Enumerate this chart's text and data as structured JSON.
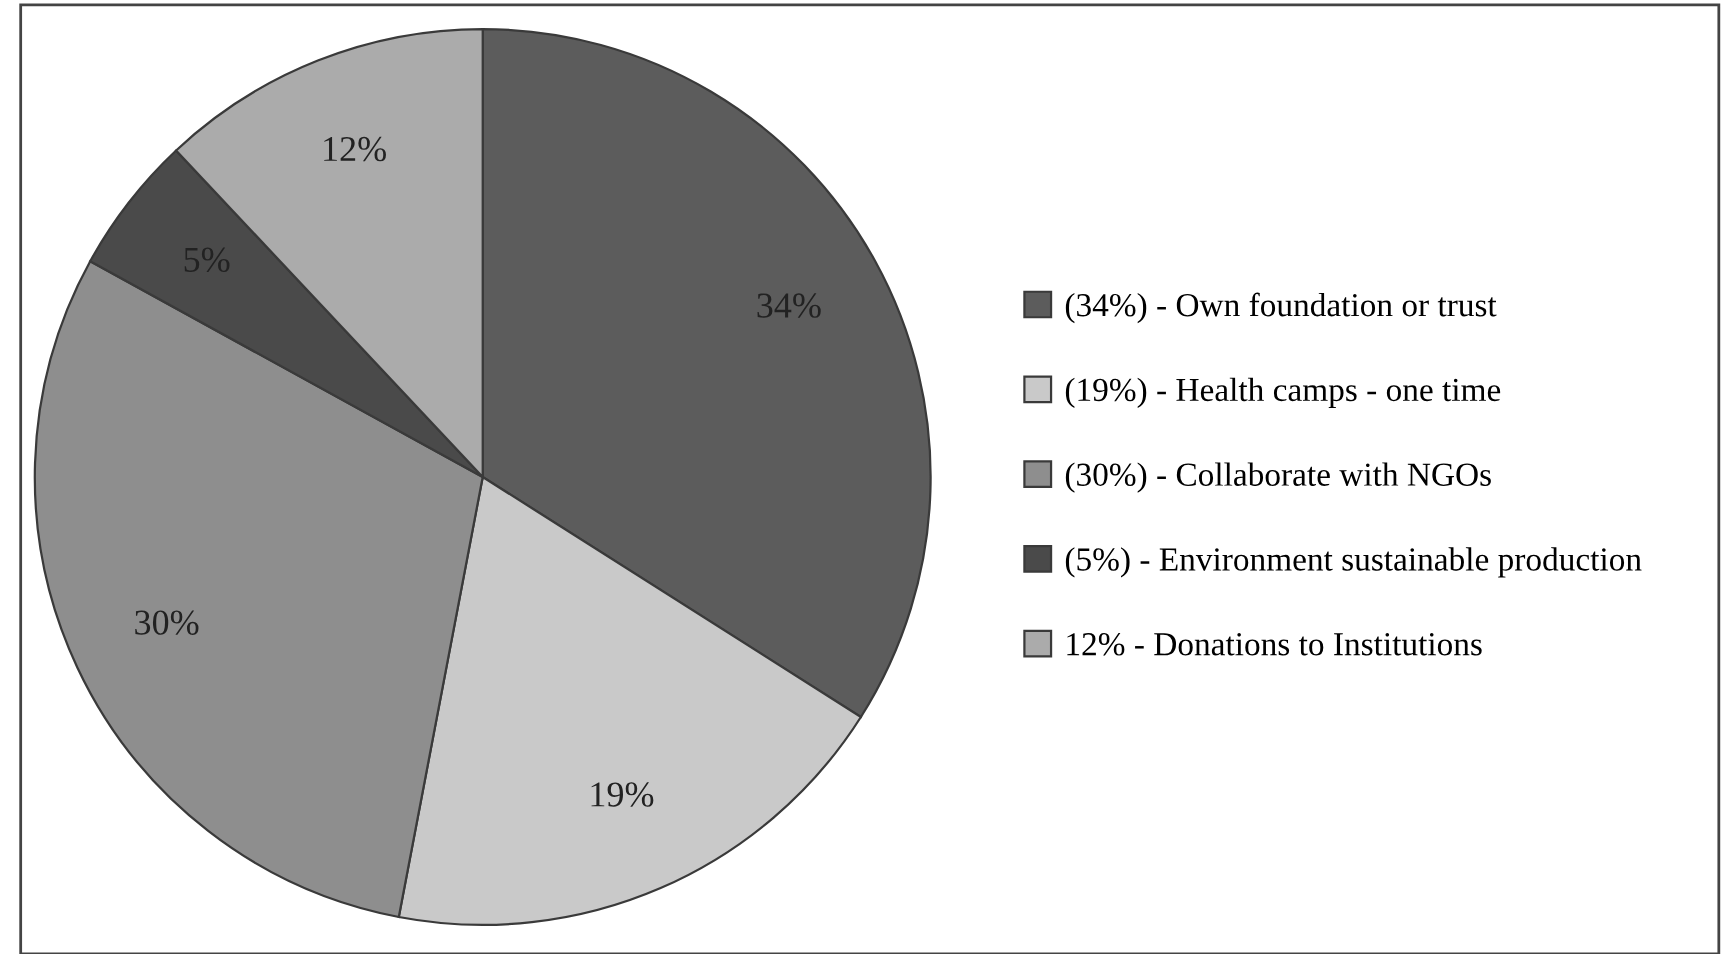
{
  "chart_data": {
    "type": "pie",
    "categories": [
      "(34%) - Own foundation or trust",
      "(19%) - Health camps - one time",
      "(30%) - Collaborate with NGOs",
      "(5%) - Environment sustainable production",
      "12% - Donations to Institutions"
    ],
    "values": [
      34,
      19,
      30,
      5,
      12
    ],
    "value_labels": [
      "34%",
      "19%",
      "30%",
      "5%",
      "12%"
    ],
    "colors": [
      "#5c5c5c",
      "#c9c9c9",
      "#8e8e8e",
      "#4a4a4a",
      "#ababab"
    ],
    "legend": "right"
  }
}
